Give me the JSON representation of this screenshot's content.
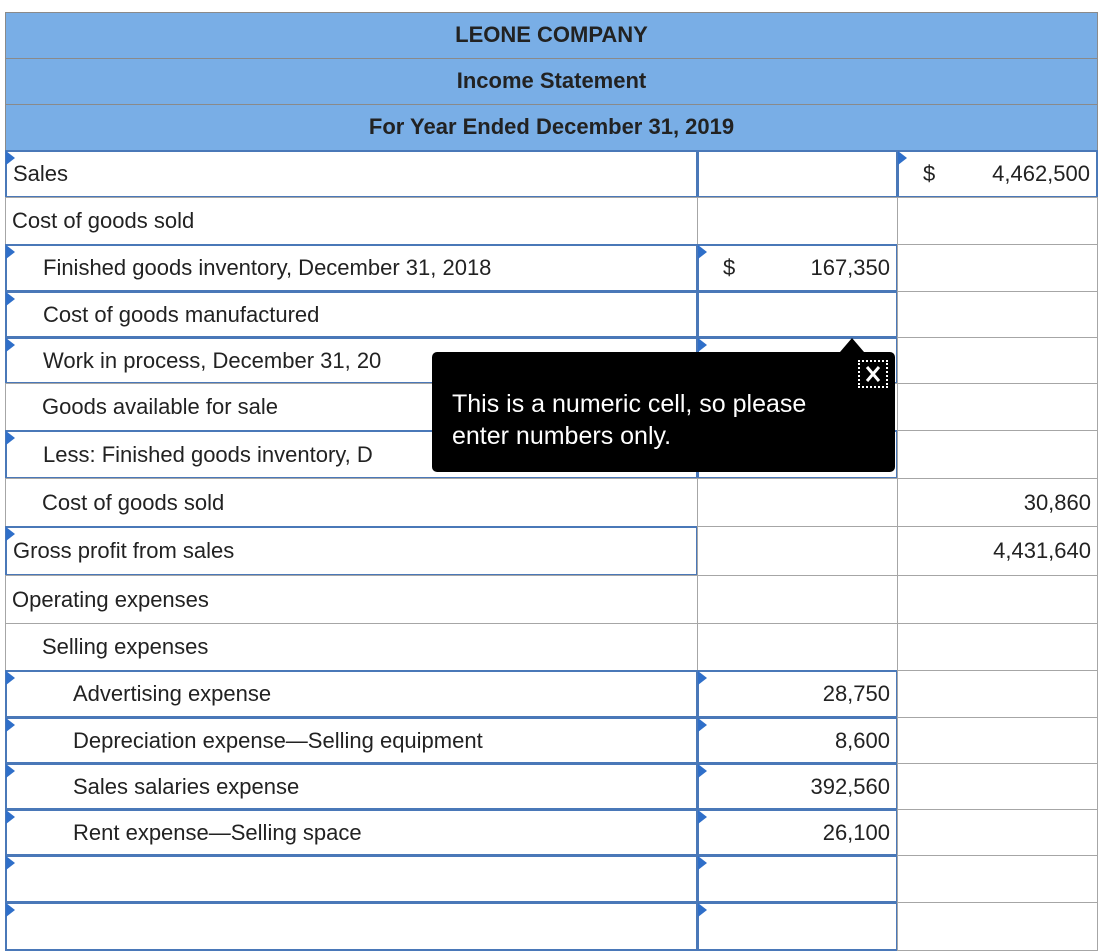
{
  "header": {
    "company": "LEONE COMPANY",
    "statement": "Income Statement",
    "period": "For Year Ended December 31, 2019"
  },
  "rows": [
    {
      "label": "Sales",
      "right_symbol": "$",
      "right": "4,462,500"
    },
    {
      "label": "Cost of goods sold"
    },
    {
      "label": "Finished goods inventory, December 31, 2018",
      "mid_symbol": "$",
      "mid": "167,350"
    },
    {
      "label": "Cost of goods manufactured"
    },
    {
      "label": "Work in process, December 31, 20"
    },
    {
      "label": "Goods available for sale"
    },
    {
      "label": "Less: Finished goods inventory, D"
    },
    {
      "label": "Cost of goods sold",
      "right": "30,860"
    },
    {
      "label": "Gross profit from sales",
      "right": "4,431,640"
    },
    {
      "label": "Operating expenses"
    },
    {
      "label": "Selling expenses"
    },
    {
      "label": "Advertising expense",
      "mid": "28,750"
    },
    {
      "label": "Depreciation expense—Selling equipment",
      "mid": "8,600"
    },
    {
      "label": "Sales salaries expense",
      "mid": "392,560"
    },
    {
      "label": "Rent expense—Selling space",
      "mid": "26,100"
    },
    {},
    {}
  ],
  "tooltip": {
    "message": "This is a numeric cell, so please enter numbers only."
  }
}
